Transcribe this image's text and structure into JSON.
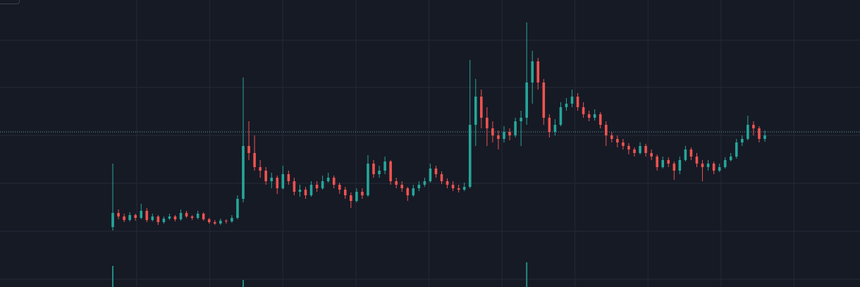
{
  "chart_data": {
    "type": "candlestick",
    "title": "",
    "xlabel": "",
    "ylabel": "",
    "grid": true,
    "ylim": [
      0,
      407
    ],
    "colors": {
      "background": "#161a25",
      "grid": "#242936",
      "up": "#26a69a",
      "down": "#ef5350",
      "price_line": "#5f9ea0"
    },
    "last_price_line": 220,
    "ohlc": [
      [
        85,
        175,
        80,
        105
      ],
      [
        105,
        110,
        96,
        100
      ],
      [
        100,
        104,
        92,
        95
      ],
      [
        95,
        106,
        93,
        102
      ],
      [
        102,
        104,
        94,
        98
      ],
      [
        98,
        118,
        96,
        108
      ],
      [
        108,
        112,
        92,
        95
      ],
      [
        95,
        104,
        93,
        100
      ],
      [
        100,
        102,
        88,
        92
      ],
      [
        92,
        100,
        90,
        97
      ],
      [
        97,
        104,
        95,
        100
      ],
      [
        100,
        102,
        93,
        96
      ],
      [
        96,
        110,
        94,
        105
      ],
      [
        105,
        108,
        98,
        100
      ],
      [
        100,
        102,
        95,
        98
      ],
      [
        98,
        108,
        96,
        104
      ],
      [
        104,
        106,
        94,
        96
      ],
      [
        96,
        98,
        90,
        92
      ],
      [
        92,
        95,
        88,
        90
      ],
      [
        90,
        97,
        88,
        94
      ],
      [
        94,
        96,
        90,
        93
      ],
      [
        93,
        102,
        91,
        98
      ],
      [
        98,
        130,
        96,
        125
      ],
      [
        125,
        297,
        120,
        200
      ],
      [
        200,
        235,
        180,
        190
      ],
      [
        190,
        215,
        165,
        170
      ],
      [
        170,
        180,
        155,
        165
      ],
      [
        165,
        170,
        145,
        150
      ],
      [
        150,
        162,
        140,
        155
      ],
      [
        155,
        158,
        132,
        140
      ],
      [
        140,
        172,
        138,
        160
      ],
      [
        160,
        165,
        145,
        150
      ],
      [
        150,
        155,
        130,
        135
      ],
      [
        135,
        145,
        128,
        138
      ],
      [
        138,
        142,
        125,
        130
      ],
      [
        130,
        150,
        128,
        145
      ],
      [
        145,
        150,
        135,
        140
      ],
      [
        140,
        158,
        138,
        150
      ],
      [
        150,
        162,
        148,
        155
      ],
      [
        155,
        158,
        140,
        145
      ],
      [
        145,
        148,
        132,
        138
      ],
      [
        138,
        142,
        125,
        130
      ],
      [
        130,
        134,
        112,
        122
      ],
      [
        122,
        140,
        120,
        135
      ],
      [
        135,
        140,
        125,
        130
      ],
      [
        130,
        187,
        128,
        175
      ],
      [
        175,
        180,
        155,
        160
      ],
      [
        160,
        172,
        155,
        165
      ],
      [
        165,
        185,
        160,
        178
      ],
      [
        178,
        180,
        145,
        150
      ],
      [
        150,
        155,
        140,
        145
      ],
      [
        145,
        150,
        135,
        140
      ],
      [
        140,
        142,
        122,
        130
      ],
      [
        130,
        145,
        128,
        140
      ],
      [
        140,
        150,
        136,
        145
      ],
      [
        145,
        155,
        142,
        150
      ],
      [
        150,
        175,
        148,
        168
      ],
      [
        168,
        172,
        155,
        160
      ],
      [
        160,
        164,
        146,
        150
      ],
      [
        150,
        154,
        140,
        145
      ],
      [
        145,
        150,
        136,
        140
      ],
      [
        140,
        145,
        134,
        138
      ],
      [
        138,
        148,
        136,
        142
      ],
      [
        142,
        322,
        140,
        230
      ],
      [
        230,
        295,
        200,
        270
      ],
      [
        270,
        280,
        225,
        240
      ],
      [
        240,
        255,
        200,
        225
      ],
      [
        225,
        235,
        205,
        215
      ],
      [
        215,
        222,
        195,
        210
      ],
      [
        210,
        228,
        205,
        220
      ],
      [
        220,
        225,
        208,
        215
      ],
      [
        215,
        240,
        212,
        235
      ],
      [
        235,
        250,
        200,
        240
      ],
      [
        240,
        375,
        230,
        290
      ],
      [
        290,
        335,
        260,
        320
      ],
      [
        320,
        325,
        280,
        290
      ],
      [
        290,
        295,
        230,
        240
      ],
      [
        240,
        245,
        212,
        220
      ],
      [
        220,
        238,
        215,
        230
      ],
      [
        230,
        262,
        228,
        255
      ],
      [
        255,
        268,
        250,
        260
      ],
      [
        260,
        280,
        255,
        270
      ],
      [
        270,
        275,
        250,
        255
      ],
      [
        255,
        262,
        240,
        245
      ],
      [
        245,
        250,
        235,
        240
      ],
      [
        240,
        252,
        236,
        245
      ],
      [
        245,
        248,
        225,
        230
      ],
      [
        230,
        235,
        200,
        215
      ],
      [
        215,
        220,
        205,
        210
      ],
      [
        210,
        215,
        198,
        205
      ],
      [
        205,
        210,
        195,
        200
      ],
      [
        200,
        204,
        188,
        195
      ],
      [
        195,
        198,
        185,
        190
      ],
      [
        190,
        205,
        188,
        200
      ],
      [
        200,
        203,
        185,
        190
      ],
      [
        190,
        195,
        180,
        185
      ],
      [
        185,
        188,
        165,
        170
      ],
      [
        170,
        185,
        168,
        180
      ],
      [
        180,
        184,
        170,
        175
      ],
      [
        175,
        178,
        152,
        165
      ],
      [
        165,
        185,
        160,
        180
      ],
      [
        180,
        200,
        178,
        195
      ],
      [
        195,
        198,
        180,
        185
      ],
      [
        185,
        190,
        170,
        175
      ],
      [
        175,
        180,
        150,
        170
      ],
      [
        170,
        180,
        165,
        175
      ],
      [
        175,
        178,
        160,
        165
      ],
      [
        165,
        175,
        163,
        170
      ],
      [
        170,
        184,
        168,
        180
      ],
      [
        180,
        190,
        178,
        185
      ],
      [
        185,
        210,
        182,
        205
      ],
      [
        205,
        215,
        200,
        210
      ],
      [
        210,
        243,
        208,
        230
      ],
      [
        230,
        235,
        215,
        225
      ],
      [
        225,
        228,
        205,
        210
      ],
      [
        210,
        222,
        206,
        215
      ]
    ],
    "volume_spikes": [
      {
        "index": 0,
        "volume": 30
      },
      {
        "index": 23,
        "volume": 10
      },
      {
        "index": 73,
        "volume": 35
      }
    ]
  }
}
